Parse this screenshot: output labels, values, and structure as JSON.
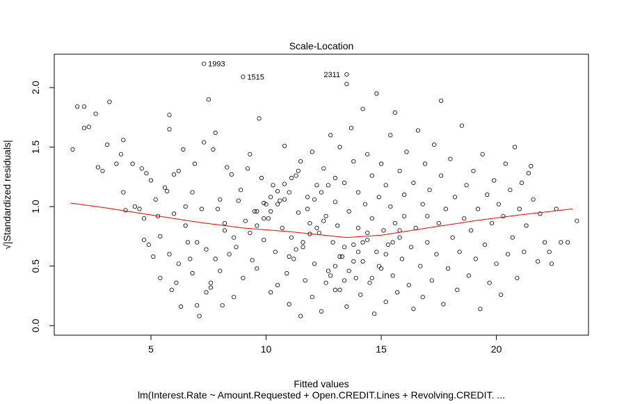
{
  "chart_data": {
    "type": "scatter",
    "title": "Scale-Location",
    "xlabel": "Fitted values",
    "ylabel": "√|Standardized residuals|",
    "subtitle": "lm(Interest.Rate ~ Amount.Requested + Open.CREDIT.Lines + Revolving.CREDIT. ...",
    "xlim": [
      0.8,
      24.0
    ],
    "ylim": [
      -0.08,
      2.28
    ],
    "xticks": [
      5,
      10,
      15,
      20
    ],
    "yticks": [
      0.0,
      0.5,
      1.0,
      1.5,
      2.0
    ],
    "grid": false,
    "point_color": "#000000",
    "smooth_color": "#ff0000",
    "labeled_points": [
      {
        "label": "1993",
        "x": 7.3,
        "y": 2.2
      },
      {
        "label": "1515",
        "x": 9.0,
        "y": 2.09
      },
      {
        "label": "2311",
        "x": 13.5,
        "y": 2.11
      }
    ],
    "smooth": {
      "x": [
        1.5,
        3,
        5,
        7,
        9,
        11,
        12.5,
        13.5,
        15,
        17,
        19,
        21,
        23.3
      ],
      "y": [
        1.03,
        0.99,
        0.93,
        0.87,
        0.82,
        0.79,
        0.76,
        0.74,
        0.76,
        0.82,
        0.88,
        0.93,
        0.98
      ]
    },
    "points": [
      [
        1.6,
        1.48
      ],
      [
        1.8,
        1.84
      ],
      [
        2.1,
        1.84
      ],
      [
        2.1,
        1.66
      ],
      [
        2.3,
        1.67
      ],
      [
        2.6,
        1.78
      ],
      [
        2.7,
        1.33
      ],
      [
        2.9,
        1.3
      ],
      [
        3.1,
        1.52
      ],
      [
        3.2,
        1.88
      ],
      [
        3.5,
        1.36
      ],
      [
        3.7,
        1.44
      ],
      [
        3.8,
        1.56
      ],
      [
        3.8,
        1.12
      ],
      [
        3.9,
        0.97
      ],
      [
        4.2,
        1.36
      ],
      [
        4.3,
        1.0
      ],
      [
        4.5,
        0.98
      ],
      [
        4.6,
        1.32
      ],
      [
        4.7,
        0.9
      ],
      [
        4.7,
        0.72
      ],
      [
        4.8,
        1.28
      ],
      [
        4.9,
        0.68
      ],
      [
        5.0,
        1.22
      ],
      [
        5.1,
        0.58
      ],
      [
        5.2,
        1.06
      ],
      [
        5.3,
        0.92
      ],
      [
        5.4,
        0.75
      ],
      [
        5.4,
        0.4
      ],
      [
        5.6,
        1.16
      ],
      [
        5.7,
        1.13
      ],
      [
        5.8,
        0.6
      ],
      [
        5.8,
        1.77
      ],
      [
        5.8,
        1.65
      ],
      [
        5.9,
        0.3
      ],
      [
        6.0,
        0.94
      ],
      [
        6.0,
        1.27
      ],
      [
        6.1,
        0.36
      ],
      [
        6.2,
        1.3
      ],
      [
        6.3,
        0.16
      ],
      [
        6.4,
        1.48
      ],
      [
        6.5,
        0.84
      ],
      [
        6.6,
        0.7
      ],
      [
        6.7,
        0.56
      ],
      [
        6.8,
        0.44
      ],
      [
        6.8,
        1.12
      ],
      [
        6.9,
        1.36
      ],
      [
        7.0,
        0.17
      ],
      [
        7.1,
        0.08
      ],
      [
        7.2,
        0.98
      ],
      [
        7.3,
        1.54
      ],
      [
        7.4,
        0.28
      ],
      [
        7.5,
        1.9
      ],
      [
        7.6,
        0.36
      ],
      [
        7.7,
        1.48
      ],
      [
        7.8,
        1.62
      ],
      [
        7.9,
        0.98
      ],
      [
        8.0,
        1.06
      ],
      [
        8.0,
        0.46
      ],
      [
        8.1,
        0.17
      ],
      [
        8.2,
        0.86
      ],
      [
        8.3,
        1.33
      ],
      [
        8.4,
        0.6
      ],
      [
        8.5,
        1.27
      ],
      [
        8.6,
        0.24
      ],
      [
        8.7,
        0.66
      ],
      [
        8.8,
        1.05
      ],
      [
        8.9,
        1.14
      ],
      [
        9.0,
        0.4
      ],
      [
        9.1,
        0.88
      ],
      [
        9.2,
        1.32
      ],
      [
        9.3,
        1.44
      ],
      [
        9.4,
        0.55
      ],
      [
        9.5,
        0.96
      ],
      [
        9.6,
        0.48
      ],
      [
        9.7,
        1.74
      ],
      [
        9.8,
        1.24
      ],
      [
        9.9,
        0.72
      ],
      [
        10.0,
        1.02
      ],
      [
        10.1,
        0.9
      ],
      [
        10.2,
        0.28
      ],
      [
        10.3,
        1.18
      ],
      [
        10.4,
        0.62
      ],
      [
        10.5,
        0.34
      ],
      [
        10.6,
        1.05
      ],
      [
        10.7,
        0.82
      ],
      [
        10.8,
        1.51
      ],
      [
        10.9,
        0.44
      ],
      [
        11.0,
        1.12
      ],
      [
        11.0,
        0.18
      ],
      [
        11.1,
        0.74
      ],
      [
        11.2,
        0.56
      ],
      [
        11.3,
        1.26
      ],
      [
        11.4,
        0.95
      ],
      [
        11.5,
        0.08
      ],
      [
        11.5,
        1.38
      ],
      [
        11.6,
        0.66
      ],
      [
        11.7,
        0.38
      ],
      [
        11.8,
        1.08
      ],
      [
        11.9,
        0.86
      ],
      [
        12.0,
        0.24
      ],
      [
        12.0,
        1.46
      ],
      [
        12.1,
        0.52
      ],
      [
        12.2,
        1.18
      ],
      [
        12.3,
        0.78
      ],
      [
        12.4,
        0.12
      ],
      [
        12.5,
        1.32
      ],
      [
        12.6,
        0.92
      ],
      [
        12.7,
        0.46
      ],
      [
        12.8,
        1.6
      ],
      [
        12.9,
        0.7
      ],
      [
        13.0,
        1.04
      ],
      [
        13.0,
        0.3
      ],
      [
        13.1,
        0.84
      ],
      [
        13.2,
        1.5
      ],
      [
        13.3,
        0.58
      ],
      [
        13.4,
        1.2
      ],
      [
        13.5,
        2.03
      ],
      [
        13.5,
        0.16
      ],
      [
        13.6,
        0.96
      ],
      [
        13.7,
        1.66
      ],
      [
        13.8,
        0.68
      ],
      [
        13.8,
        1.38
      ],
      [
        13.9,
        0.4
      ],
      [
        14.0,
        1.12
      ],
      [
        14.0,
        0.82
      ],
      [
        14.1,
        0.26
      ],
      [
        14.2,
        1.82
      ],
      [
        14.2,
        0.54
      ],
      [
        14.3,
        1.02
      ],
      [
        14.4,
        0.72
      ],
      [
        14.4,
        1.44
      ],
      [
        14.5,
        0.36
      ],
      [
        14.6,
        0.9
      ],
      [
        14.6,
        1.26
      ],
      [
        14.7,
        0.1
      ],
      [
        14.8,
        0.62
      ],
      [
        14.8,
        1.95
      ],
      [
        14.9,
        1.08
      ],
      [
        15.0,
        0.48
      ],
      [
        15.0,
        1.36
      ],
      [
        15.1,
        0.8
      ],
      [
        15.2,
        0.2
      ],
      [
        15.2,
        1.18
      ],
      [
        15.3,
        0.68
      ],
      [
        15.4,
        1.6
      ],
      [
        15.4,
        1.0
      ],
      [
        15.5,
        0.42
      ],
      [
        15.6,
        0.86
      ],
      [
        15.6,
        1.79
      ],
      [
        15.7,
        0.28
      ],
      [
        15.8,
        1.3
      ],
      [
        15.8,
        0.74
      ],
      [
        15.9,
        0.56
      ],
      [
        16.0,
        1.1
      ],
      [
        16.0,
        0.92
      ],
      [
        16.1,
        1.46
      ],
      [
        16.2,
        0.34
      ],
      [
        16.3,
        0.66
      ],
      [
        16.4,
        1.2
      ],
      [
        16.4,
        0.14
      ],
      [
        16.5,
        0.82
      ],
      [
        16.6,
        1.64
      ],
      [
        16.7,
        0.5
      ],
      [
        16.8,
        1.02
      ],
      [
        16.8,
        0.24
      ],
      [
        16.9,
        1.36
      ],
      [
        17.0,
        0.7
      ],
      [
        17.0,
        0.92
      ],
      [
        17.1,
        1.14
      ],
      [
        17.2,
        0.38
      ],
      [
        17.3,
        1.52
      ],
      [
        17.4,
        0.6
      ],
      [
        17.5,
        0.86
      ],
      [
        17.6,
        1.26
      ],
      [
        17.6,
        1.89
      ],
      [
        17.7,
        0.18
      ],
      [
        17.8,
        0.98
      ],
      [
        17.9,
        0.48
      ],
      [
        18.0,
        1.4
      ],
      [
        18.1,
        0.74
      ],
      [
        18.2,
        1.08
      ],
      [
        18.3,
        0.3
      ],
      [
        18.4,
        0.62
      ],
      [
        18.5,
        1.68
      ],
      [
        18.6,
        0.9
      ],
      [
        18.7,
        1.18
      ],
      [
        18.8,
        0.42
      ],
      [
        18.9,
        0.8
      ],
      [
        19.0,
        1.3
      ],
      [
        19.1,
        0.56
      ],
      [
        19.2,
        0.98
      ],
      [
        19.3,
        0.14
      ],
      [
        19.4,
        1.44
      ],
      [
        19.5,
        0.68
      ],
      [
        19.6,
        1.1
      ],
      [
        19.7,
        0.36
      ],
      [
        19.8,
        0.86
      ],
      [
        19.9,
        1.22
      ],
      [
        20.0,
        0.52
      ],
      [
        20.1,
        1.02
      ],
      [
        20.2,
        0.26
      ],
      [
        20.3,
        0.92
      ],
      [
        20.4,
        1.36
      ],
      [
        20.5,
        0.6
      ],
      [
        20.6,
        1.14
      ],
      [
        20.7,
        0.74
      ],
      [
        20.8,
        1.5
      ],
      [
        20.9,
        0.4
      ],
      [
        21.0,
        0.98
      ],
      [
        21.1,
        1.2
      ],
      [
        21.2,
        0.62
      ],
      [
        21.3,
        0.84
      ],
      [
        21.4,
        1.28
      ],
      [
        21.5,
        1.34
      ],
      [
        21.6,
        1.06
      ],
      [
        21.8,
        0.54
      ],
      [
        21.9,
        0.94
      ],
      [
        22.1,
        0.7
      ],
      [
        22.3,
        0.62
      ],
      [
        22.4,
        0.52
      ],
      [
        22.6,
        0.98
      ],
      [
        22.8,
        0.7
      ],
      [
        23.1,
        0.7
      ],
      [
        23.5,
        0.88
      ],
      [
        9.6,
        0.96
      ],
      [
        9.9,
        1.03
      ],
      [
        10.2,
        1.08
      ],
      [
        10.5,
        1.13
      ],
      [
        10.8,
        1.19
      ],
      [
        11.1,
        1.24
      ],
      [
        11.4,
        1.3
      ],
      [
        9.3,
        0.78
      ],
      [
        9.6,
        0.84
      ],
      [
        9.9,
        0.9
      ],
      [
        10.2,
        0.96
      ],
      [
        10.5,
        1.02
      ],
      [
        10.8,
        1.06
      ],
      [
        11.0,
        0.58
      ],
      [
        11.3,
        0.64
      ],
      [
        11.6,
        0.7
      ],
      [
        11.9,
        0.77
      ],
      [
        12.2,
        0.82
      ],
      [
        12.5,
        0.88
      ],
      [
        13.2,
        0.3
      ],
      [
        13.4,
        0.38
      ],
      [
        13.6,
        0.46
      ],
      [
        13.8,
        0.54
      ],
      [
        14.0,
        0.62
      ],
      [
        14.2,
        0.7
      ],
      [
        14.4,
        0.78
      ],
      [
        12.6,
        0.36
      ],
      [
        12.8,
        0.42
      ],
      [
        13.0,
        0.5
      ],
      [
        13.2,
        0.58
      ],
      [
        13.4,
        0.66
      ],
      [
        14.6,
        0.4
      ],
      [
        14.9,
        0.5
      ],
      [
        15.2,
        0.6
      ],
      [
        15.5,
        0.7
      ],
      [
        15.8,
        0.8
      ],
      [
        11.8,
        0.98
      ],
      [
        12.1,
        1.06
      ],
      [
        12.4,
        1.12
      ],
      [
        12.7,
        1.18
      ],
      [
        13.0,
        1.24
      ],
      [
        7.0,
        0.7
      ],
      [
        7.4,
        0.64
      ],
      [
        7.8,
        0.56
      ],
      [
        8.2,
        0.8
      ],
      [
        8.6,
        0.74
      ],
      [
        6.5,
        1.0
      ],
      [
        6.2,
        0.52
      ],
      [
        7.6,
        0.32
      ]
    ]
  }
}
